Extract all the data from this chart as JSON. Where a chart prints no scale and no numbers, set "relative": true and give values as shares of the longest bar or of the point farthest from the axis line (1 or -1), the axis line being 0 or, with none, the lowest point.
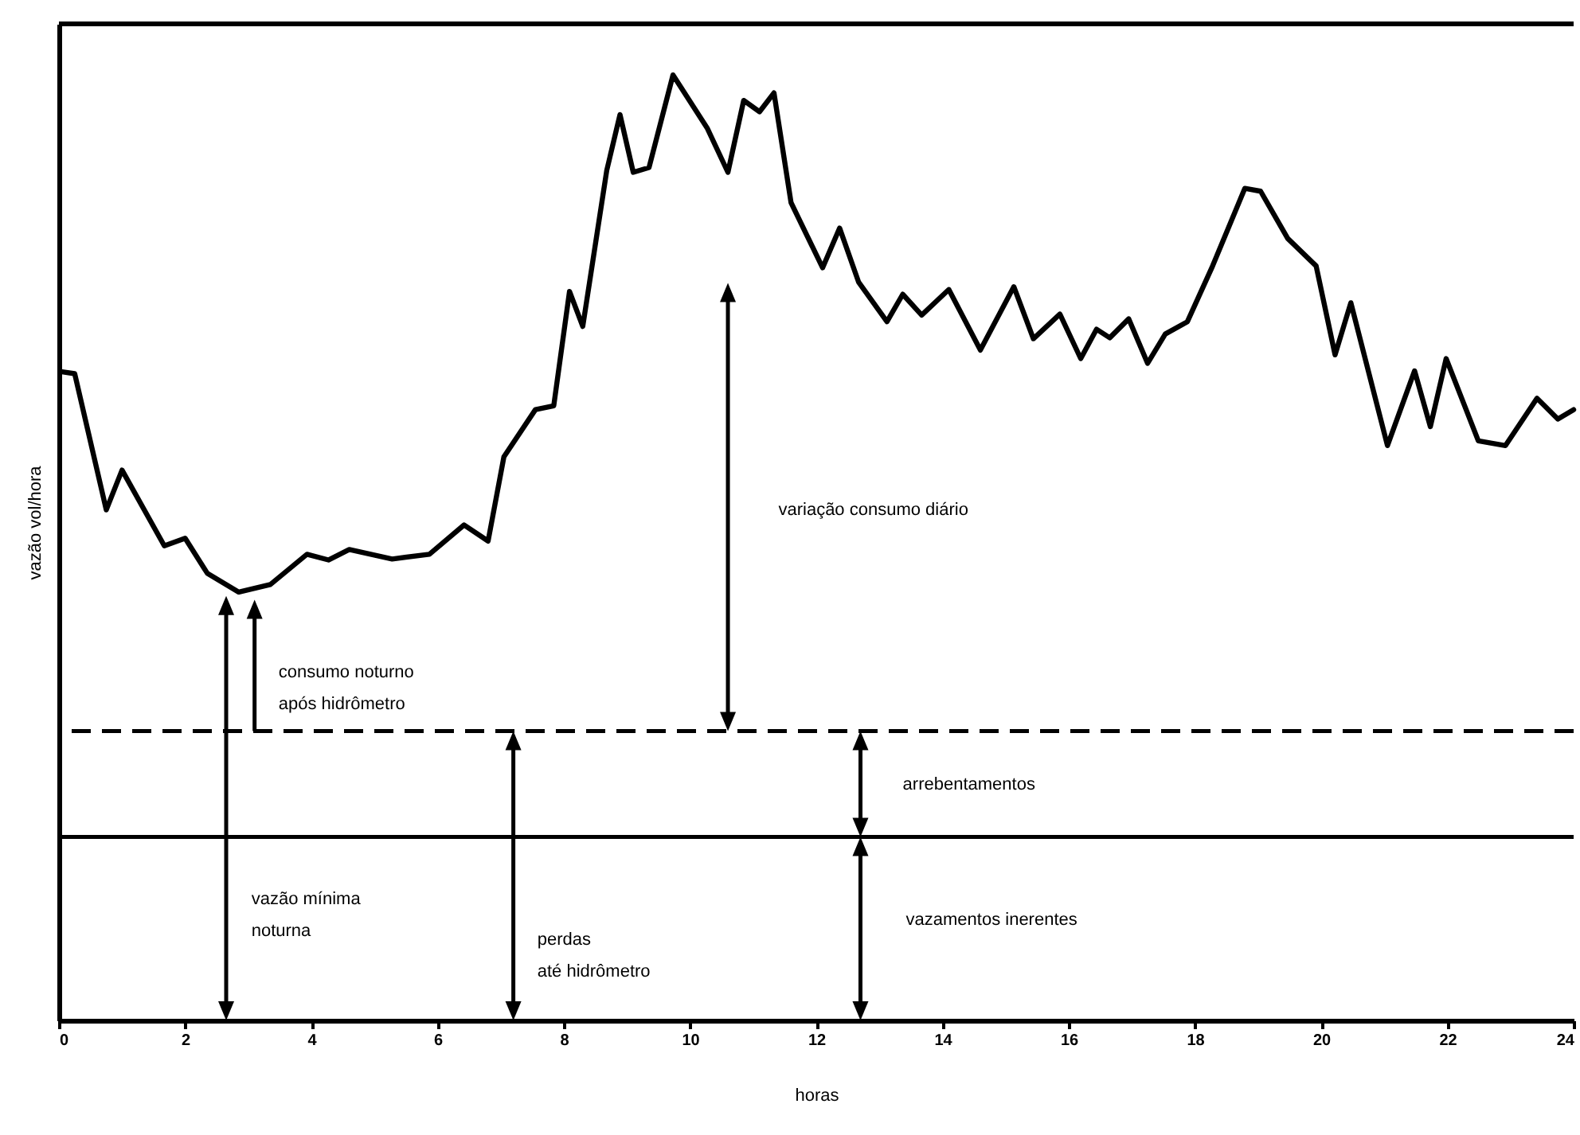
{
  "chart_data": {
    "type": "line",
    "xlabel": "horas",
    "ylabel": "vazão vol/hora",
    "relative": true,
    "xlim": [
      0,
      24
    ],
    "xticks": [
      0,
      2,
      4,
      6,
      8,
      10,
      12,
      14,
      16,
      18,
      20,
      22,
      24
    ],
    "grid": false,
    "marker": "none",
    "line_style": "solid",
    "x": [
      0.05,
      0.25,
      0.75,
      1.0,
      1.67,
      2.0,
      2.35,
      2.85,
      3.35,
      3.93,
      4.27,
      4.6,
      5.28,
      5.87,
      6.42,
      6.8,
      7.05,
      7.55,
      7.84,
      8.09,
      8.3,
      8.68,
      8.89,
      9.1,
      9.35,
      9.73,
      10.27,
      10.6,
      10.85,
      11.1,
      11.33,
      11.6,
      12.1,
      12.37,
      12.67,
      13.12,
      13.37,
      13.67,
      14.1,
      14.6,
      15.13,
      15.44,
      15.86,
      16.19,
      16.44,
      16.65,
      16.95,
      17.25,
      17.53,
      17.88,
      18.28,
      18.79,
      19.04,
      19.47,
      19.92,
      20.22,
      20.47,
      21.05,
      21.48,
      21.73,
      21.98,
      22.49,
      22.92,
      23.42,
      23.75,
      24
    ],
    "series": [
      {
        "color": "#000000",
        "values": [
          0.686,
          0.684,
          0.54,
          0.582,
          0.502,
          0.51,
          0.473,
          0.453,
          0.461,
          0.493,
          0.487,
          0.498,
          0.488,
          0.493,
          0.524,
          0.507,
          0.596,
          0.646,
          0.65,
          0.771,
          0.734,
          0.899,
          0.958,
          0.897,
          0.902,
          1,
          0.944,
          0.897,
          0.973,
          0.961,
          0.981,
          0.865,
          0.796,
          0.838,
          0.781,
          0.739,
          0.768,
          0.746,
          0.773,
          0.709,
          0.776,
          0.721,
          0.747,
          0.7,
          0.731,
          0.722,
          0.742,
          0.695,
          0.726,
          0.739,
          0.798,
          0.88,
          0.877,
          0.827,
          0.798,
          0.704,
          0.759,
          0.608,
          0.687,
          0.628,
          0.7,
          0.613,
          0.608,
          0.658,
          0.636,
          0.646
        ]
      }
    ],
    "ref_lines": [
      {
        "axis": "y",
        "value": 0.306,
        "color": "#000000",
        "line_style": "dashed"
      },
      {
        "axis": "y",
        "value": 0.194,
        "color": "#000000",
        "line_style": "solid"
      }
    ],
    "annotations": [
      "variação consumo diário",
      "consumo noturno\napós hidrômetro",
      "vazão mínima\nnoturna",
      "perdas\naté hidrômetro",
      "arrebentamentos",
      "vazamentos inerentes"
    ]
  }
}
